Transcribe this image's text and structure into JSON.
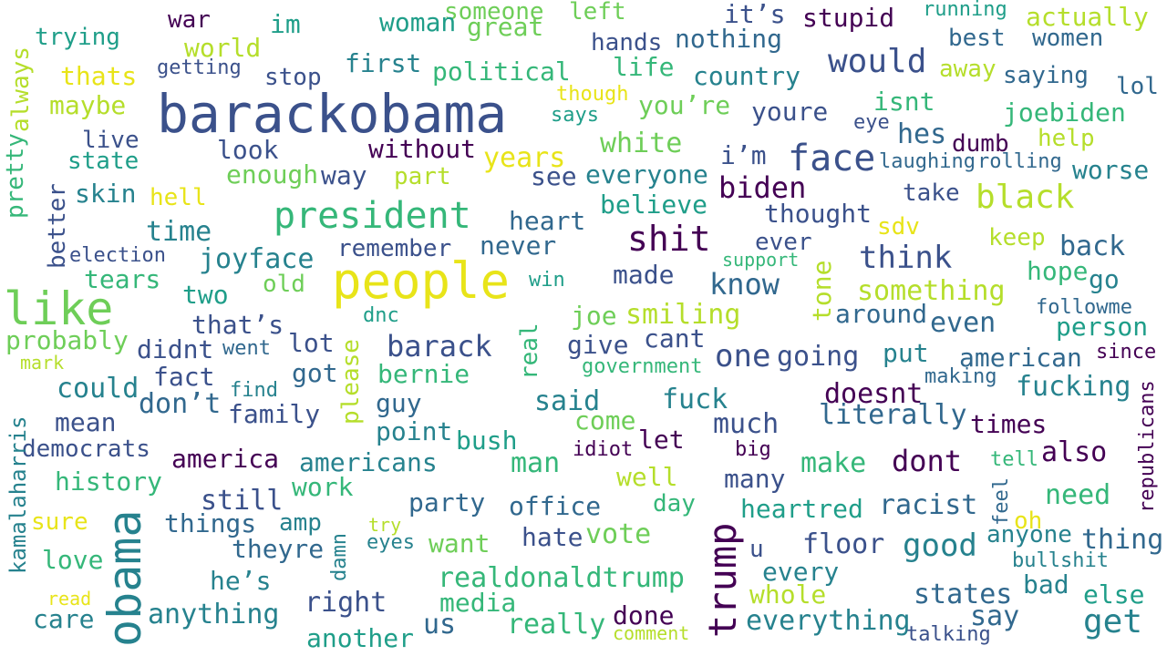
{
  "palette": {
    "dark_purple": "#440154",
    "indigo": "#3b518b",
    "slate_blue": "#31688e",
    "teal_blue": "#26828e",
    "teal": "#1f9e89",
    "green": "#35b779",
    "light_green": "#6ece58",
    "lime": "#b5de2b",
    "yellow": "#e8e419",
    "background": "#ffffff"
  },
  "words": [
    {
      "text": "barackobama",
      "color": "#3b518b"
    },
    {
      "text": "people",
      "color": "#e8e419"
    },
    {
      "text": "like",
      "color": "#6ece58"
    },
    {
      "text": "obama",
      "color": "#26828e"
    },
    {
      "text": "trump",
      "color": "#440154"
    },
    {
      "text": "president",
      "color": "#35b779"
    },
    {
      "text": "face",
      "color": "#3b518b"
    },
    {
      "text": "shit",
      "color": "#440154"
    },
    {
      "text": "would",
      "color": "#3b518b"
    },
    {
      "text": "black",
      "color": "#b5de2b"
    },
    {
      "text": "get",
      "color": "#26828e"
    },
    {
      "text": "one",
      "color": "#3b518b"
    },
    {
      "text": "think",
      "color": "#3b518b"
    },
    {
      "text": "biden",
      "color": "#440154"
    },
    {
      "text": "dont",
      "color": "#440154"
    },
    {
      "text": "barack",
      "color": "#3b518b"
    },
    {
      "text": "know",
      "color": "#31688e"
    },
    {
      "text": "even",
      "color": "#31688e"
    },
    {
      "text": "white",
      "color": "#6ece58"
    },
    {
      "text": "realdonaldtrump",
      "color": "#35b779"
    },
    {
      "text": "years",
      "color": "#e8e419"
    },
    {
      "text": "country",
      "color": "#26828e"
    },
    {
      "text": "joebiden",
      "color": "#35b779"
    },
    {
      "text": "nothing",
      "color": "#31688e"
    },
    {
      "text": "stupid",
      "color": "#440154"
    },
    {
      "text": "actually",
      "color": "#b5de2b"
    },
    {
      "text": "it’s",
      "color": "#3b518b"
    },
    {
      "text": "someone",
      "color": "#6ece58"
    },
    {
      "text": "left",
      "color": "#6ece58"
    },
    {
      "text": "running",
      "color": "#1f9e89"
    },
    {
      "text": "war",
      "color": "#440154"
    },
    {
      "text": "im",
      "color": "#1f9e89"
    },
    {
      "text": "woman",
      "color": "#1f9e89"
    },
    {
      "text": "great",
      "color": "#6ece58"
    },
    {
      "text": "hands",
      "color": "#3b518b"
    },
    {
      "text": "best",
      "color": "#31688e"
    },
    {
      "text": "women",
      "color": "#31688e"
    },
    {
      "text": "trying",
      "color": "#1f9e89"
    },
    {
      "text": "world",
      "color": "#b5de2b"
    },
    {
      "text": "always",
      "color": "#b5de2b"
    },
    {
      "text": "pretty",
      "color": "#35b779"
    },
    {
      "text": "thats",
      "color": "#e8e419"
    },
    {
      "text": "getting",
      "color": "#3b518b"
    },
    {
      "text": "stop",
      "color": "#3b518b"
    },
    {
      "text": "first",
      "color": "#26828e"
    },
    {
      "text": "political",
      "color": "#35b779"
    },
    {
      "text": "life",
      "color": "#35b779"
    },
    {
      "text": "away",
      "color": "#b5de2b"
    },
    {
      "text": "saying",
      "color": "#31688e"
    },
    {
      "text": "lol",
      "color": "#31688e"
    },
    {
      "text": "maybe",
      "color": "#b5de2b"
    },
    {
      "text": "though",
      "color": "#e8e419"
    },
    {
      "text": "says",
      "color": "#1f9e89"
    },
    {
      "text": "you’re",
      "color": "#6ece58"
    },
    {
      "text": "youre",
      "color": "#3b518b"
    },
    {
      "text": "isnt",
      "color": "#35b779"
    },
    {
      "text": "eye",
      "color": "#3b518b"
    },
    {
      "text": "hes",
      "color": "#31688e"
    },
    {
      "text": "help",
      "color": "#b5de2b"
    },
    {
      "text": "live",
      "color": "#3b518b"
    },
    {
      "text": "look",
      "color": "#3b518b"
    },
    {
      "text": "without",
      "color": "#440154"
    },
    {
      "text": "dumb",
      "color": "#440154"
    },
    {
      "text": "state",
      "color": "#1f9e89"
    },
    {
      "text": "i’m",
      "color": "#3b518b"
    },
    {
      "text": "laughing",
      "color": "#31688e"
    },
    {
      "text": "rolling",
      "color": "#31688e"
    },
    {
      "text": "worse",
      "color": "#26828e"
    },
    {
      "text": "better",
      "color": "#3b518b"
    },
    {
      "text": "skin",
      "color": "#26828e"
    },
    {
      "text": "hell",
      "color": "#e8e419"
    },
    {
      "text": "enough",
      "color": "#6ece58"
    },
    {
      "text": "way",
      "color": "#3b518b"
    },
    {
      "text": "part",
      "color": "#b5de2b"
    },
    {
      "text": "see",
      "color": "#3b518b"
    },
    {
      "text": "everyone",
      "color": "#26828e"
    },
    {
      "text": "take",
      "color": "#3b518b"
    },
    {
      "text": "believe",
      "color": "#1f9e89"
    },
    {
      "text": "thought",
      "color": "#3b518b"
    },
    {
      "text": "heart",
      "color": "#31688e"
    },
    {
      "text": "time",
      "color": "#26828e"
    },
    {
      "text": "sdv",
      "color": "#e8e419"
    },
    {
      "text": "election",
      "color": "#3b518b"
    },
    {
      "text": "joyface",
      "color": "#26828e"
    },
    {
      "text": "remember",
      "color": "#3b518b"
    },
    {
      "text": "never",
      "color": "#31688e"
    },
    {
      "text": "ever",
      "color": "#3b518b"
    },
    {
      "text": "keep",
      "color": "#b5de2b"
    },
    {
      "text": "back",
      "color": "#31688e"
    },
    {
      "text": "support",
      "color": "#35b779"
    },
    {
      "text": "tone",
      "color": "#b5de2b"
    },
    {
      "text": "tears",
      "color": "#35b779"
    },
    {
      "text": "old",
      "color": "#6ece58"
    },
    {
      "text": "made",
      "color": "#3b518b"
    },
    {
      "text": "win",
      "color": "#1f9e89"
    },
    {
      "text": "something",
      "color": "#b5de2b"
    },
    {
      "text": "hope",
      "color": "#35b779"
    },
    {
      "text": "go",
      "color": "#26828e"
    },
    {
      "text": "two",
      "color": "#1f9e89"
    },
    {
      "text": "dnc",
      "color": "#1f9e89"
    },
    {
      "text": "joe",
      "color": "#6ece58"
    },
    {
      "text": "smiling",
      "color": "#b5de2b"
    },
    {
      "text": "around",
      "color": "#31688e"
    },
    {
      "text": "followme",
      "color": "#31688e"
    },
    {
      "text": "that’s",
      "color": "#3b518b"
    },
    {
      "text": "person",
      "color": "#1f9e89"
    },
    {
      "text": "probably",
      "color": "#6ece58"
    },
    {
      "text": "went",
      "color": "#31688e"
    },
    {
      "text": "lot",
      "color": "#3b518b"
    },
    {
      "text": "please",
      "color": "#b5de2b"
    },
    {
      "text": "real",
      "color": "#35b779"
    },
    {
      "text": "give",
      "color": "#3b518b"
    },
    {
      "text": "cant",
      "color": "#3b518b"
    },
    {
      "text": "going",
      "color": "#3b518b"
    },
    {
      "text": "put",
      "color": "#26828e"
    },
    {
      "text": "american",
      "color": "#31688e"
    },
    {
      "text": "since",
      "color": "#440154"
    },
    {
      "text": "didnt",
      "color": "#3b518b"
    },
    {
      "text": "mark",
      "color": "#b5de2b"
    },
    {
      "text": "fact",
      "color": "#3b518b"
    },
    {
      "text": "got",
      "color": "#31688e"
    },
    {
      "text": "bernie",
      "color": "#35b779"
    },
    {
      "text": "government",
      "color": "#35b779"
    },
    {
      "text": "making",
      "color": "#31688e"
    },
    {
      "text": "could",
      "color": "#26828e"
    },
    {
      "text": "find",
      "color": "#26828e"
    },
    {
      "text": "don’t",
      "color": "#31688e"
    },
    {
      "text": "guy",
      "color": "#31688e"
    },
    {
      "text": "said",
      "color": "#26828e"
    },
    {
      "text": "fuck",
      "color": "#26828e"
    },
    {
      "text": "doesnt",
      "color": "#440154"
    },
    {
      "text": "fucking",
      "color": "#26828e"
    },
    {
      "text": "republicans",
      "color": "#440154"
    },
    {
      "text": "family",
      "color": "#3b518b"
    },
    {
      "text": "mean",
      "color": "#3b518b"
    },
    {
      "text": "point",
      "color": "#26828e"
    },
    {
      "text": "come",
      "color": "#6ece58"
    },
    {
      "text": "much",
      "color": "#3b518b"
    },
    {
      "text": "literally",
      "color": "#31688e"
    },
    {
      "text": "times",
      "color": "#440154"
    },
    {
      "text": "democrats",
      "color": "#3b518b"
    },
    {
      "text": "bush",
      "color": "#1f9e89"
    },
    {
      "text": "idiot",
      "color": "#440154"
    },
    {
      "text": "let",
      "color": "#440154"
    },
    {
      "text": "big",
      "color": "#440154"
    },
    {
      "text": "tell",
      "color": "#35b779"
    },
    {
      "text": "also",
      "color": "#440154"
    },
    {
      "text": "america",
      "color": "#440154"
    },
    {
      "text": "americans",
      "color": "#26828e"
    },
    {
      "text": "man",
      "color": "#35b779"
    },
    {
      "text": "make",
      "color": "#35b779"
    },
    {
      "text": "well",
      "color": "#b5de2b"
    },
    {
      "text": "many",
      "color": "#3b518b"
    },
    {
      "text": "kamalaharris",
      "color": "#26828e"
    },
    {
      "text": "history",
      "color": "#35b779"
    },
    {
      "text": "work",
      "color": "#35b779"
    },
    {
      "text": "feel",
      "color": "#31688e"
    },
    {
      "text": "still",
      "color": "#3b518b"
    },
    {
      "text": "party",
      "color": "#31688e"
    },
    {
      "text": "office",
      "color": "#31688e"
    },
    {
      "text": "day",
      "color": "#35b779"
    },
    {
      "text": "heartred",
      "color": "#1f9e89"
    },
    {
      "text": "racist",
      "color": "#31688e"
    },
    {
      "text": "need",
      "color": "#35b779"
    },
    {
      "text": "sure",
      "color": "#e8e419"
    },
    {
      "text": "things",
      "color": "#31688e"
    },
    {
      "text": "amp",
      "color": "#26828e"
    },
    {
      "text": "try",
      "color": "#b5de2b"
    },
    {
      "text": "damn",
      "color": "#26828e"
    },
    {
      "text": "vote",
      "color": "#6ece58"
    },
    {
      "text": "oh",
      "color": "#e8e419"
    },
    {
      "text": "anyone",
      "color": "#26828e"
    },
    {
      "text": "thing",
      "color": "#31688e"
    },
    {
      "text": "theyre",
      "color": "#31688e"
    },
    {
      "text": "eyes",
      "color": "#26828e"
    },
    {
      "text": "want",
      "color": "#6ece58"
    },
    {
      "text": "hate",
      "color": "#3b518b"
    },
    {
      "text": "u",
      "color": "#3b518b"
    },
    {
      "text": "floor",
      "color": "#3b518b"
    },
    {
      "text": "good",
      "color": "#26828e"
    },
    {
      "text": "bullshit",
      "color": "#26828e"
    },
    {
      "text": "love",
      "color": "#35b779"
    },
    {
      "text": "he’s",
      "color": "#26828e"
    },
    {
      "text": "every",
      "color": "#26828e"
    },
    {
      "text": "bad",
      "color": "#26828e"
    },
    {
      "text": "read",
      "color": "#e8e419"
    },
    {
      "text": "right",
      "color": "#3b518b"
    },
    {
      "text": "media",
      "color": "#35b779"
    },
    {
      "text": "whole",
      "color": "#b5de2b"
    },
    {
      "text": "states",
      "color": "#31688e"
    },
    {
      "text": "else",
      "color": "#1f9e89"
    },
    {
      "text": "care",
      "color": "#26828e"
    },
    {
      "text": "anything",
      "color": "#26828e"
    },
    {
      "text": "us",
      "color": "#31688e"
    },
    {
      "text": "done",
      "color": "#440154"
    },
    {
      "text": "really",
      "color": "#35b779"
    },
    {
      "text": "everything",
      "color": "#26828e"
    },
    {
      "text": "say",
      "color": "#31688e"
    },
    {
      "text": "comment",
      "color": "#b5de2b"
    },
    {
      "text": "another",
      "color": "#1f9e89"
    },
    {
      "text": "talking",
      "color": "#3b518b"
    }
  ]
}
